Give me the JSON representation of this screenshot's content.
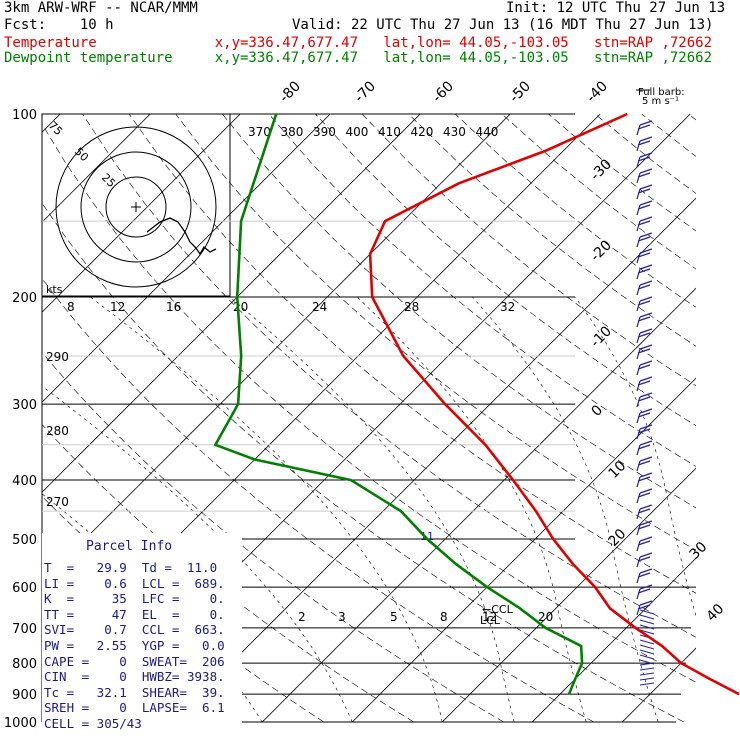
{
  "header": {
    "model": "3km ARW-WRF -- NCAR/MMM",
    "init": "Init: 12 UTC Thu 27 Jun 13",
    "fcst": "Fcst:    10 h",
    "valid": "Valid: 22 UTC Thu 27 Jun 13 (16 MDT Thu 27 Jun 13)",
    "temp_line": "Temperature              x,y=336.47,677.47   lat,lon= 44.05,-103.05   stn=RAP ,72662",
    "dew_line": "Dewpoint temperature     x,y=336.47,677.47   lat,lon= 44.05,-103.05   stn=RAP ,72662",
    "colors": {
      "temperature": "#e00000",
      "dewpoint": "#008000",
      "parcel": "#1a1a8c",
      "barbs": "#2020a0"
    }
  },
  "chart_data": {
    "type": "line",
    "pressure_axis": [
      "100",
      "200",
      "300",
      "400",
      "500",
      "600",
      "700",
      "800",
      "900",
      "1000"
    ],
    "isotherm_labels_top": [
      "-80",
      "-70",
      "-60",
      "-50",
      "-40"
    ],
    "isotherm_labels_right": [
      "-30",
      "-20",
      "-10",
      "0",
      "10",
      "20",
      "30",
      "40"
    ],
    "theta_labels": [
      "370",
      "380",
      "390",
      "400",
      "410",
      "420",
      "430",
      "440"
    ],
    "theta_left_labels": [
      "290",
      "280",
      "270"
    ],
    "mixing_ratio_labels": [
      "2",
      "3",
      "5",
      "8",
      "12",
      "20"
    ],
    "hodograph": {
      "rings": [
        "75",
        "50",
        "25"
      ],
      "kts_label": "kts",
      "speed_scale": [
        "8",
        "12",
        "16",
        "20",
        "24",
        "28",
        "32"
      ]
    },
    "barb_legend": "Full barb:\n5 m s⁻¹",
    "annotations": {
      "lcl": "LCL",
      "ccl": "CCL",
      "lcl_ccl": "←CCL",
      "el_marker": "11"
    },
    "series": [
      {
        "name": "Temperature",
        "points": [
          [
            900,
            29.9
          ],
          [
            850,
            25
          ],
          [
            800,
            20
          ],
          [
            750,
            16
          ],
          [
            700,
            11
          ],
          [
            650,
            6
          ],
          [
            600,
            2
          ],
          [
            550,
            -3
          ],
          [
            500,
            -8
          ],
          [
            450,
            -13
          ],
          [
            400,
            -19
          ],
          [
            350,
            -26
          ],
          [
            300,
            -35
          ],
          [
            250,
            -45
          ],
          [
            200,
            -55
          ],
          [
            170,
            -60
          ],
          [
            150,
            -62
          ],
          [
            130,
            -58
          ],
          [
            115,
            -52
          ],
          [
            100,
            -47
          ]
        ]
      },
      {
        "name": "Dewpoint temperature",
        "points": [
          [
            900,
            11
          ],
          [
            850,
            10
          ],
          [
            800,
            9
          ],
          [
            750,
            7
          ],
          [
            700,
            1
          ],
          [
            650,
            -4
          ],
          [
            600,
            -10
          ],
          [
            550,
            -16
          ],
          [
            500,
            -22
          ],
          [
            450,
            -28
          ],
          [
            400,
            -37
          ],
          [
            370,
            -50
          ],
          [
            350,
            -56
          ],
          [
            300,
            -58
          ],
          [
            250,
            -63
          ],
          [
            200,
            -70
          ],
          [
            150,
            -78
          ],
          [
            100,
            -86
          ]
        ]
      }
    ]
  },
  "parcel_info": {
    "title": "Parcel Info",
    "lines": [
      "T  =   29.9  Td =  11.0",
      "LI =    0.6  LCL =  689.",
      "K  =     35  LFC =    0.",
      "TT =     47  EL  =    0.",
      "SVI=    0.7  CCL =  663.",
      "PW =   2.55  YGP =   0.0",
      "CAPE =    0  SWEAT=  206",
      "CIN  =    0  HWBZ= 3938.",
      "Tc =   32.1  SHEAR=  39.",
      "SREH =    0  LAPSE=  6.1",
      "CELL = 305/43"
    ]
  }
}
